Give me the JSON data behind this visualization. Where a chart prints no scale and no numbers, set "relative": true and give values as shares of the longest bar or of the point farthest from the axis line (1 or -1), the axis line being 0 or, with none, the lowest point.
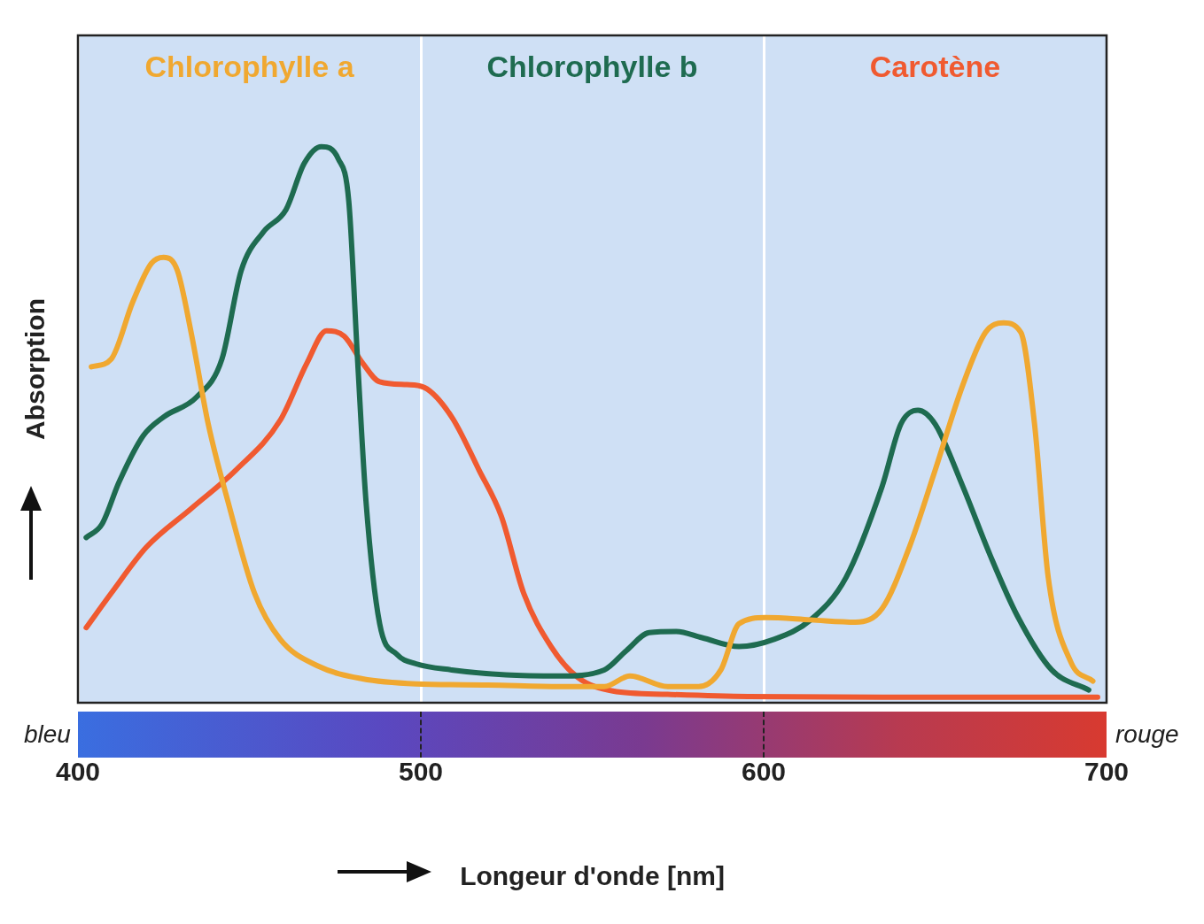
{
  "chart_data": {
    "type": "line",
    "relative": true,
    "xlabel": "Longeur d'onde [nm]",
    "ylabel": "Absorption",
    "xlim": [
      400,
      700
    ],
    "xticks": [
      400,
      500,
      600,
      700
    ],
    "grid": "x",
    "legend": "top",
    "marker": "none",
    "line_style": "solid",
    "annotations": [
      "bleu",
      "rouge"
    ],
    "series": [
      {
        "name": "Chlorophylle a",
        "color": "#f0a830",
        "x": [
          403.9,
          409.7,
          416,
          421.4,
          425,
          429,
          433,
          438,
          443.7,
          451.5,
          459,
          470,
          483,
          498.6,
          519.5,
          540.5,
          553.5,
          561,
          572,
          581,
          587.5,
          592.8,
          600.6,
          613.7,
          626.8,
          634.6,
          642.5,
          650,
          658,
          664.7,
          670,
          675,
          679,
          683,
          689.6,
          696
        ],
        "values": [
          0.604,
          0.618,
          0.721,
          0.79,
          0.801,
          0.777,
          0.666,
          0.501,
          0.363,
          0.197,
          0.114,
          0.066,
          0.043,
          0.034,
          0.032,
          0.029,
          0.029,
          0.048,
          0.029,
          0.029,
          0.059,
          0.142,
          0.153,
          0.149,
          0.145,
          0.17,
          0.28,
          0.418,
          0.57,
          0.666,
          0.683,
          0.666,
          0.501,
          0.225,
          0.073,
          0.039
        ]
      },
      {
        "name": "Chlorophylle b",
        "color": "#1e6b50",
        "x": [
          402.4,
          407,
          412,
          419,
          425,
          434.5,
          442,
          447.6,
          454,
          460.7,
          466,
          471,
          476,
          479,
          481.6,
          484,
          488,
          493,
          498.6,
          509,
          524.8,
          540.5,
          553.5,
          560,
          566.6,
          574.5,
          582,
          592.8,
          603,
          613.7,
          624,
          634.6,
          640,
          645,
          650,
          658,
          666,
          674,
          684,
          694.8
        ],
        "values": [
          0.297,
          0.321,
          0.397,
          0.48,
          0.514,
          0.549,
          0.618,
          0.777,
          0.846,
          0.887,
          0.97,
          1,
          0.977,
          0.901,
          0.611,
          0.363,
          0.142,
          0.087,
          0.07,
          0.059,
          0.05,
          0.048,
          0.059,
          0.094,
          0.126,
          0.128,
          0.117,
          0.101,
          0.114,
          0.149,
          0.225,
          0.39,
          0.501,
          0.526,
          0.501,
          0.39,
          0.266,
          0.156,
          0.059,
          0.023
        ]
      },
      {
        "name": "Carotène",
        "color": "#f05a30",
        "x": [
          402.4,
          409.7,
          420,
          433,
          446,
          459,
          466.8,
          472.5,
          477.7,
          483,
          488,
          496,
          501,
          509,
          517,
          523.5,
          530,
          538,
          545.7,
          556,
          572,
          595.4,
          634.6,
          697.4
        ],
        "values": [
          0.135,
          0.197,
          0.28,
          0.349,
          0.418,
          0.508,
          0.611,
          0.669,
          0.659,
          0.611,
          0.577,
          0.572,
          0.567,
          0.514,
          0.418,
          0.335,
          0.197,
          0.101,
          0.046,
          0.021,
          0.015,
          0.011,
          0.01,
          0.01
        ]
      }
    ]
  }
}
